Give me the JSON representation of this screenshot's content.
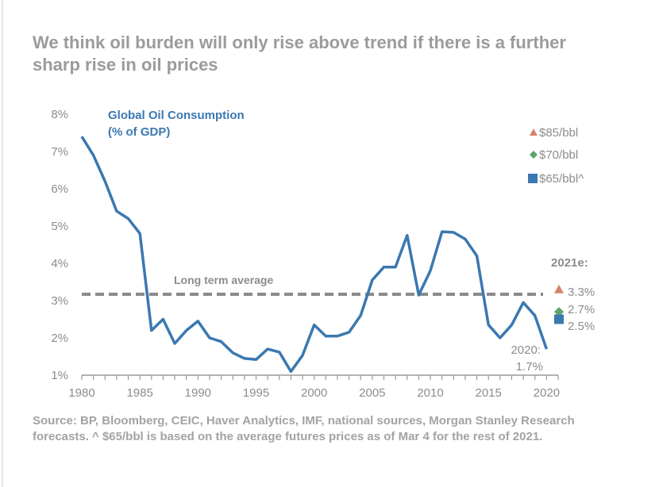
{
  "title": "We think oil burden will only rise above trend if there is a further sharp rise in oil prices",
  "source": "Source: BP, Bloomberg, CEIC, Haver Analytics, IMF, national sources, Morgan Stanley Research forecasts. ^ $65/bbl is based on the average futures prices as of Mar 4 for the rest of 2021.",
  "chart_data": {
    "type": "line",
    "title": "We think oil burden will only rise above trend if there is a further sharp rise in oil prices",
    "series_title_line1": "Global Oil Consumption",
    "series_title_line2": "(% of GDP)",
    "xlabel": "",
    "ylabel": "",
    "xlim": [
      1980,
      2021
    ],
    "ylim": [
      1,
      8
    ],
    "grid": false,
    "y_ticks": [
      1,
      2,
      3,
      4,
      5,
      6,
      7,
      8
    ],
    "y_tick_labels": [
      "1%",
      "2%",
      "3%",
      "4%",
      "5%",
      "6%",
      "7%",
      "8%"
    ],
    "x_ticks": [
      1980,
      1985,
      1990,
      1995,
      2000,
      2005,
      2010,
      2015,
      2020
    ],
    "x_tick_labels": [
      "1980",
      "1985",
      "1990",
      "1995",
      "2000",
      "2005",
      "2010",
      "2015",
      "2020"
    ],
    "series": [
      {
        "name": "Global Oil Consumption (% of GDP)",
        "color": "#3a78b0",
        "x": [
          1980,
          1981,
          1982,
          1983,
          1984,
          1985,
          1986,
          1987,
          1988,
          1989,
          1990,
          1991,
          1992,
          1993,
          1994,
          1995,
          1996,
          1997,
          1998,
          1999,
          2000,
          2001,
          2002,
          2003,
          2004,
          2005,
          2006,
          2007,
          2008,
          2009,
          2010,
          2011,
          2012,
          2013,
          2014,
          2015,
          2016,
          2017,
          2018,
          2019,
          2020
        ],
        "values": [
          7.4,
          6.9,
          6.2,
          5.4,
          5.2,
          4.8,
          2.2,
          2.5,
          1.85,
          2.2,
          2.45,
          2.0,
          1.9,
          1.6,
          1.45,
          1.42,
          1.7,
          1.62,
          1.1,
          1.53,
          2.35,
          2.05,
          2.05,
          2.15,
          2.6,
          3.55,
          3.9,
          3.9,
          4.75,
          3.15,
          3.8,
          4.85,
          4.83,
          4.65,
          4.2,
          2.35,
          2.0,
          2.35,
          2.95,
          2.6,
          1.7
        ]
      }
    ],
    "reference_line": {
      "label": "Long term average",
      "value": 3.17,
      "color": "#8a8a8a"
    },
    "estimates_2021": {
      "heading": "2021e:",
      "x": 2021,
      "points": [
        {
          "name": "$85/bbl",
          "value": 3.3,
          "label": "3.3%",
          "marker": "triangle",
          "color": "#d9826a"
        },
        {
          "name": "$70/bbl",
          "value": 2.7,
          "label": "2.7%",
          "marker": "diamond",
          "color": "#5aa66b"
        },
        {
          "name": "$65/bbl^",
          "value": 2.5,
          "label": "2.5%",
          "marker": "square",
          "color": "#3a78b0"
        }
      ]
    },
    "legend": {
      "position": "top-right",
      "entries": [
        {
          "label": "$85/bbl",
          "marker": "triangle",
          "color": "#d9826a"
        },
        {
          "label": "$70/bbl",
          "marker": "diamond",
          "color": "#5aa66b"
        },
        {
          "label": "$65/bbl^",
          "marker": "square",
          "color": "#3a78b0"
        }
      ]
    },
    "annotation_2020_line1": "2020:",
    "annotation_2020_line2": "1.7%"
  }
}
